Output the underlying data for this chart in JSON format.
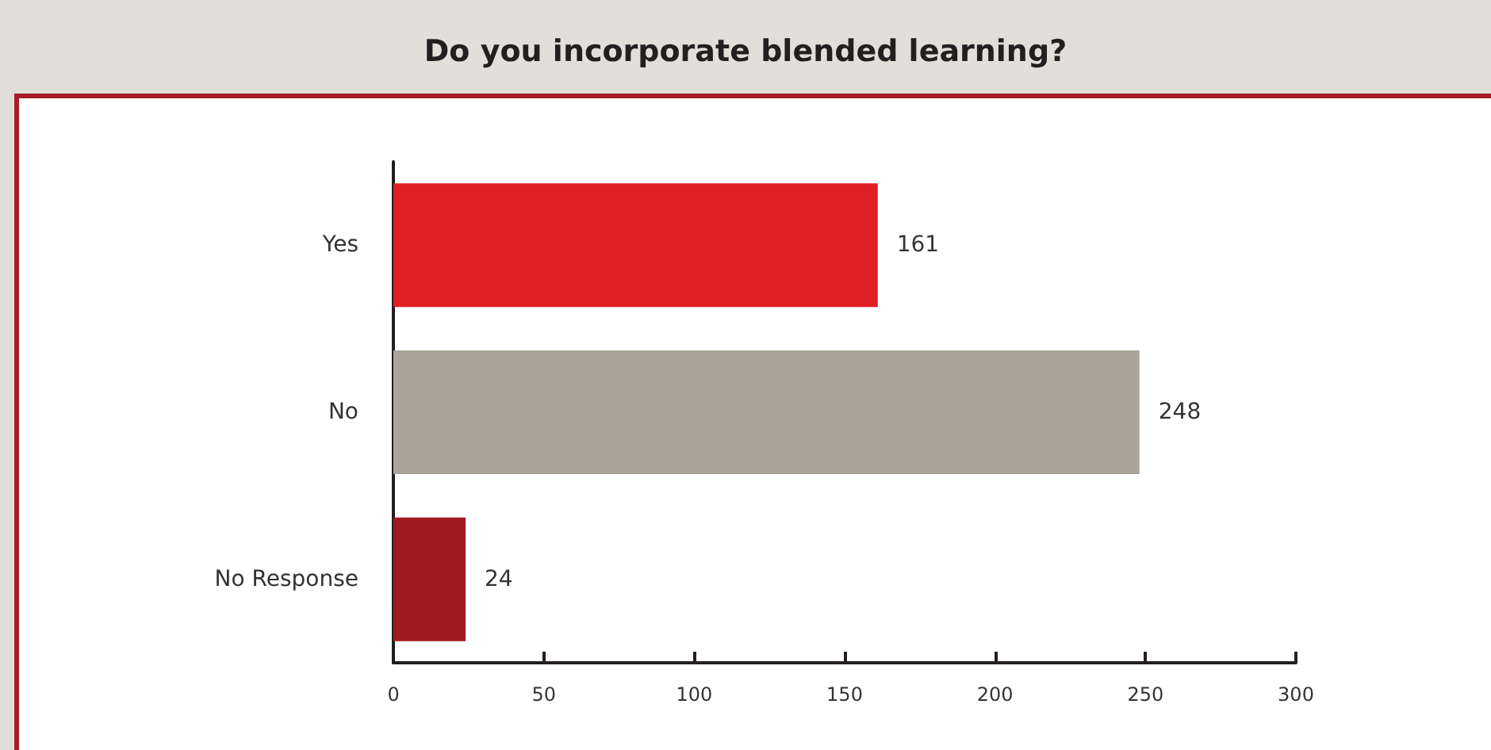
{
  "chart_data": {
    "type": "bar",
    "orientation": "horizontal",
    "title": "Do you incorporate blended learning?",
    "categories": [
      "Yes",
      "No",
      "No Response"
    ],
    "values": [
      161,
      248,
      24
    ],
    "colors": [
      "#e01f26",
      "#a8a598",
      "#9e1b21"
    ],
    "xlim": [
      0,
      300
    ],
    "xticks": [
      0,
      50,
      100,
      150,
      200,
      250,
      300
    ],
    "grid": false,
    "data_labels": true
  }
}
